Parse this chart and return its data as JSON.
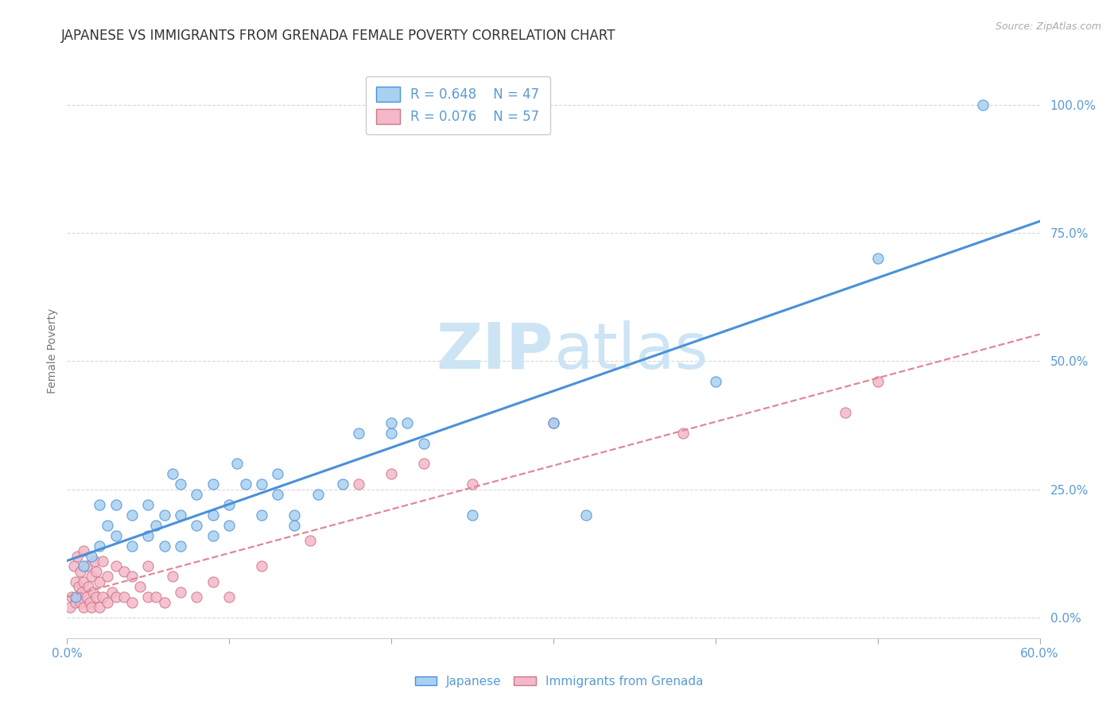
{
  "title": "JAPANESE VS IMMIGRANTS FROM GRENADA FEMALE POVERTY CORRELATION CHART",
  "source": "Source: ZipAtlas.com",
  "ylabel": "Female Poverty",
  "ytick_labels": [
    "0.0%",
    "25.0%",
    "50.0%",
    "75.0%",
    "100.0%"
  ],
  "ytick_values": [
    0.0,
    0.25,
    0.5,
    0.75,
    1.0
  ],
  "xmin": 0.0,
  "xmax": 0.6,
  "ymin": -0.04,
  "ymax": 1.08,
  "legend_r_blue": "R = 0.648",
  "legend_n_blue": "N = 47",
  "legend_r_pink": "R = 0.076",
  "legend_n_pink": "N = 57",
  "blue_color": "#a8d0f0",
  "pink_color": "#f4b8c8",
  "line_blue": "#4a90d9",
  "line_pink": "#e08898",
  "watermark_zip": "ZIP",
  "watermark_atlas": "atlas",
  "watermark_color": "#cde4f5",
  "background_color": "#ffffff",
  "grid_color": "#d8d8d8",
  "title_color": "#333333",
  "axis_label_color": "#5b9bd5",
  "blue_scatter_x": [
    0.005,
    0.01,
    0.015,
    0.02,
    0.02,
    0.025,
    0.03,
    0.03,
    0.04,
    0.04,
    0.05,
    0.05,
    0.055,
    0.06,
    0.06,
    0.065,
    0.07,
    0.07,
    0.07,
    0.08,
    0.08,
    0.09,
    0.09,
    0.09,
    0.1,
    0.1,
    0.105,
    0.11,
    0.12,
    0.12,
    0.13,
    0.13,
    0.14,
    0.14,
    0.155,
    0.17,
    0.18,
    0.2,
    0.2,
    0.21,
    0.22,
    0.25,
    0.3,
    0.32,
    0.4,
    0.5,
    0.565
  ],
  "blue_scatter_y": [
    0.04,
    0.1,
    0.12,
    0.14,
    0.22,
    0.18,
    0.16,
    0.22,
    0.14,
    0.2,
    0.16,
    0.22,
    0.18,
    0.14,
    0.2,
    0.28,
    0.14,
    0.2,
    0.26,
    0.18,
    0.24,
    0.16,
    0.2,
    0.26,
    0.18,
    0.22,
    0.3,
    0.26,
    0.2,
    0.26,
    0.24,
    0.28,
    0.18,
    0.2,
    0.24,
    0.26,
    0.36,
    0.36,
    0.38,
    0.38,
    0.34,
    0.2,
    0.38,
    0.2,
    0.46,
    0.7,
    1.0
  ],
  "pink_scatter_x": [
    0.002,
    0.003,
    0.004,
    0.005,
    0.005,
    0.006,
    0.006,
    0.007,
    0.008,
    0.008,
    0.009,
    0.01,
    0.01,
    0.01,
    0.012,
    0.012,
    0.013,
    0.014,
    0.015,
    0.015,
    0.016,
    0.017,
    0.018,
    0.018,
    0.02,
    0.02,
    0.022,
    0.022,
    0.025,
    0.025,
    0.028,
    0.03,
    0.03,
    0.035,
    0.035,
    0.04,
    0.04,
    0.045,
    0.05,
    0.05,
    0.055,
    0.06,
    0.065,
    0.07,
    0.08,
    0.09,
    0.1,
    0.12,
    0.15,
    0.18,
    0.2,
    0.22,
    0.25,
    0.3,
    0.38,
    0.48,
    0.5
  ],
  "pink_scatter_y": [
    0.02,
    0.04,
    0.1,
    0.03,
    0.07,
    0.04,
    0.12,
    0.06,
    0.03,
    0.09,
    0.05,
    0.02,
    0.07,
    0.13,
    0.04,
    0.1,
    0.06,
    0.03,
    0.02,
    0.08,
    0.05,
    0.11,
    0.04,
    0.09,
    0.02,
    0.07,
    0.04,
    0.11,
    0.03,
    0.08,
    0.05,
    0.04,
    0.1,
    0.04,
    0.09,
    0.03,
    0.08,
    0.06,
    0.04,
    0.1,
    0.04,
    0.03,
    0.08,
    0.05,
    0.04,
    0.07,
    0.04,
    0.1,
    0.15,
    0.26,
    0.28,
    0.3,
    0.26,
    0.38,
    0.36,
    0.4,
    0.46
  ],
  "tick_label_fontsize": 11,
  "title_fontsize": 12,
  "ylabel_fontsize": 10,
  "legend_fontsize": 12
}
